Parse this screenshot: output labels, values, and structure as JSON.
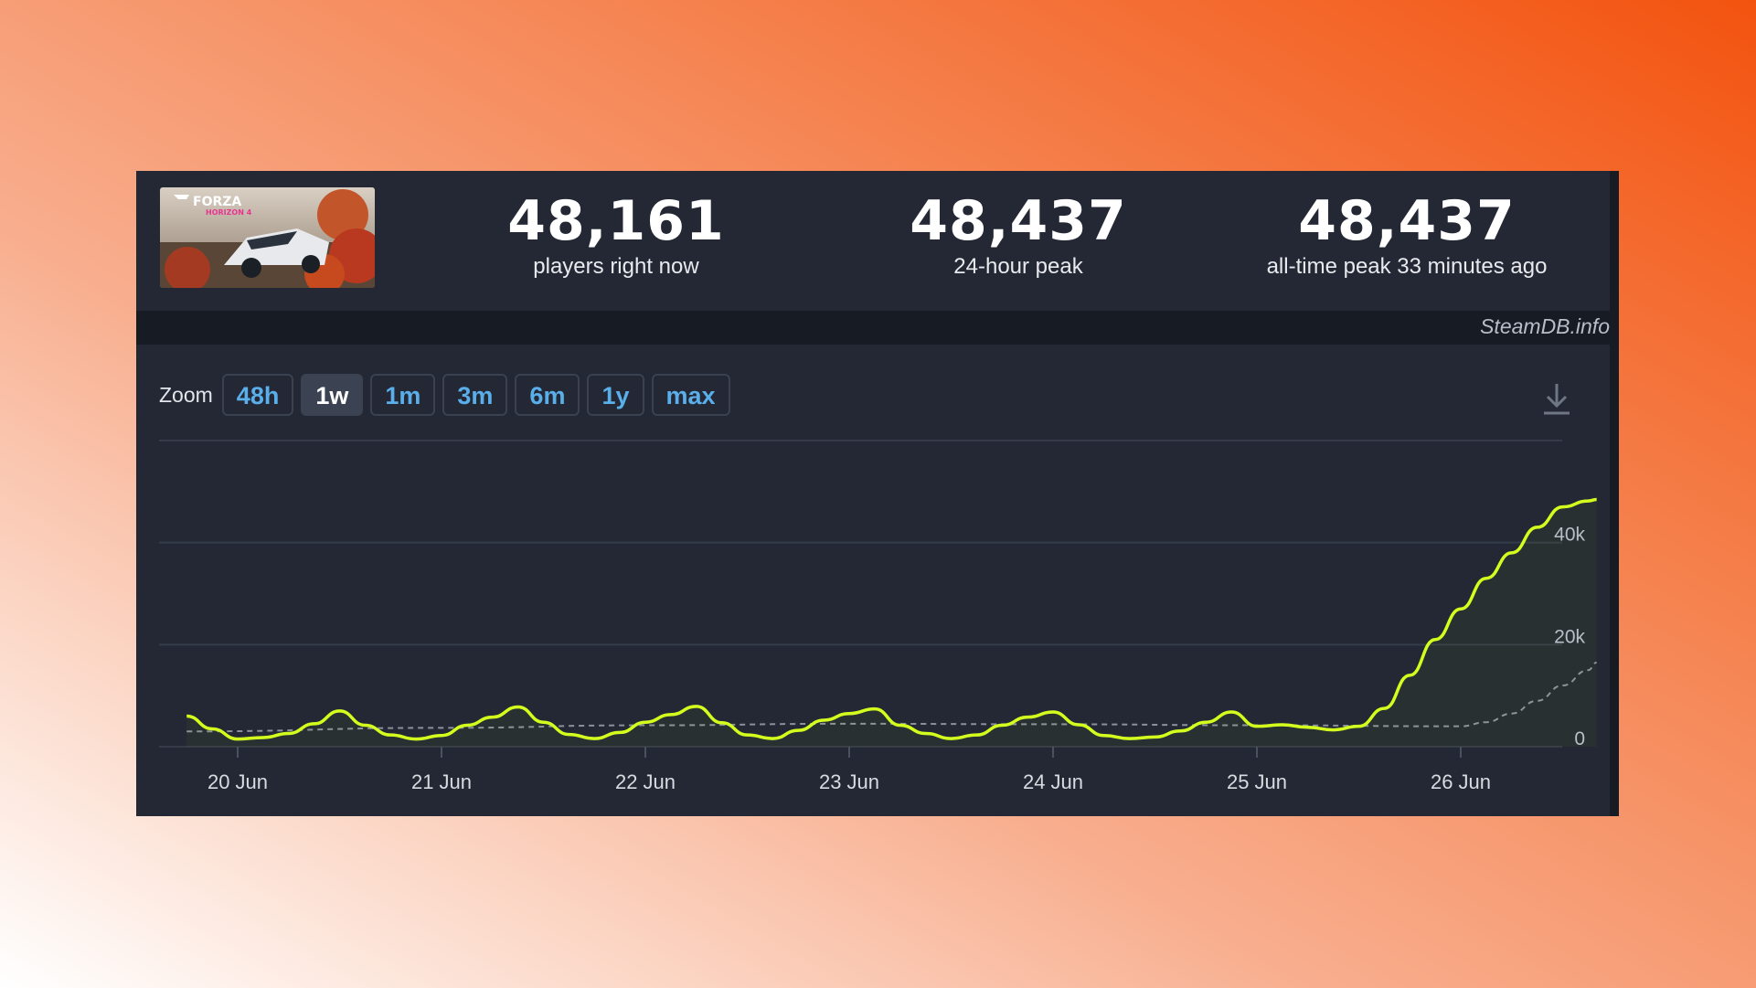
{
  "game": {
    "logo_text": "FORZA",
    "logo_subtext": "HORIZON 4"
  },
  "stats": [
    {
      "value": "48,161",
      "label": "players right now"
    },
    {
      "value": "48,437",
      "label": "24-hour peak"
    },
    {
      "value": "48,437",
      "label": "all-time peak 33 minutes ago"
    }
  ],
  "watermark": "SteamDB.info",
  "zoom": {
    "label": "Zoom",
    "options": [
      "48h",
      "1w",
      "1m",
      "3m",
      "6m",
      "1y",
      "max"
    ],
    "selected": "1w"
  },
  "colors": {
    "line": "#d4ff1e",
    "background": "#232834",
    "accent": "#5aaeea"
  },
  "chart_data": {
    "type": "line",
    "x_ticks": [
      "20 Jun",
      "21 Jun",
      "22 Jun",
      "23 Jun",
      "24 Jun",
      "25 Jun",
      "26 Jun"
    ],
    "y_ticks": [
      "0",
      "20k",
      "40k"
    ],
    "ylim": [
      0,
      60000
    ],
    "grid": true,
    "series": [
      {
        "x": [
          "19 Jun 18:00",
          "19 Jun 21:00",
          "20 Jun 00:00",
          "20 Jun 03:00",
          "20 Jun 06:00",
          "20 Jun 09:00",
          "20 Jun 12:00",
          "20 Jun 15:00",
          "20 Jun 18:00",
          "20 Jun 21:00",
          "21 Jun 00:00",
          "21 Jun 03:00",
          "21 Jun 06:00",
          "21 Jun 09:00",
          "21 Jun 12:00",
          "21 Jun 15:00",
          "21 Jun 18:00",
          "21 Jun 21:00",
          "22 Jun 00:00",
          "22 Jun 03:00",
          "22 Jun 06:00",
          "22 Jun 09:00",
          "22 Jun 12:00",
          "22 Jun 15:00",
          "22 Jun 18:00",
          "22 Jun 21:00",
          "23 Jun 00:00",
          "23 Jun 03:00",
          "23 Jun 06:00",
          "23 Jun 09:00",
          "23 Jun 12:00",
          "23 Jun 15:00",
          "23 Jun 18:00",
          "23 Jun 21:00",
          "24 Jun 00:00",
          "24 Jun 03:00",
          "24 Jun 06:00",
          "24 Jun 09:00",
          "24 Jun 12:00",
          "24 Jun 15:00",
          "24 Jun 18:00",
          "24 Jun 21:00",
          "25 Jun 00:00",
          "25 Jun 03:00",
          "25 Jun 06:00",
          "25 Jun 09:00",
          "25 Jun 12:00",
          "25 Jun 15:00",
          "25 Jun 18:00",
          "25 Jun 21:00",
          "26 Jun 00:00",
          "26 Jun 03:00",
          "26 Jun 06:00",
          "26 Jun 09:00",
          "26 Jun 12:00",
          "26 Jun 15:00",
          "26 Jun 16:00"
        ],
        "values": [
          6000,
          3500,
          1500,
          1800,
          2600,
          4500,
          7000,
          4200,
          2300,
          1500,
          2200,
          4200,
          5800,
          7800,
          4800,
          2400,
          1600,
          2800,
          4800,
          6300,
          7900,
          4700,
          2300,
          1600,
          3200,
          5200,
          6500,
          7400,
          4200,
          2600,
          1600,
          2300,
          4200,
          5800,
          6800,
          4300,
          2200,
          1600,
          1900,
          3100,
          4800,
          6800,
          4000,
          4300,
          3800,
          3300,
          4000,
          7500,
          14000,
          21000,
          27000,
          33000,
          38000,
          43000,
          47000,
          48161,
          48437
        ],
        "name": ""
      },
      {
        "x": [
          "19 Jun 18:00",
          "21 Jun 00:00",
          "22 Jun 00:00",
          "23 Jun 00:00",
          "24 Jun 00:00",
          "25 Jun 00:00",
          "26 Jun 00:00",
          "26 Jun 03:00",
          "26 Jun 06:00",
          "26 Jun 09:00",
          "26 Jun 12:00",
          "26 Jun 15:00",
          "26 Jun 16:00"
        ],
        "values": [
          3000,
          3700,
          4200,
          4500,
          4400,
          4200,
          4000,
          4800,
          6500,
          9000,
          12000,
          15000,
          16500
        ],
        "name": ""
      }
    ]
  }
}
